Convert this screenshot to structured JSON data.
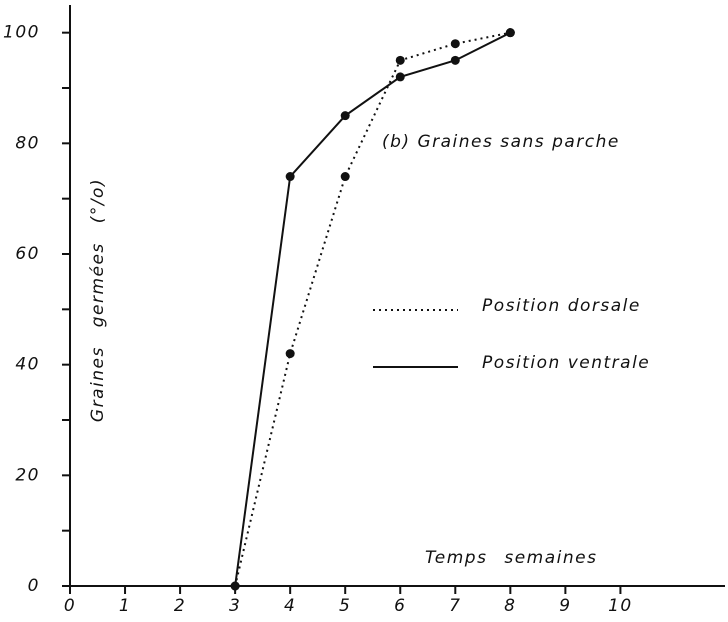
{
  "chart_data": {
    "type": "line",
    "annotation": "(b) Graines sans parche",
    "xlabel": "Temps semaines",
    "ylabel": "Graines germées (°/o)",
    "x": [
      3,
      4,
      5,
      6,
      7,
      8
    ],
    "series": [
      {
        "name": "Position dorsale",
        "color": "#111111",
        "dash": "dotted",
        "values": [
          0,
          42,
          74,
          95,
          98,
          100
        ]
      },
      {
        "name": "Position ventrale",
        "color": "#111111",
        "dash": "solid",
        "values": [
          0,
          74,
          85,
          92,
          95,
          100
        ]
      }
    ],
    "xlim": [
      0,
      11.9
    ],
    "xticks": [
      0,
      1,
      2,
      3,
      4,
      5,
      6,
      7,
      8,
      9,
      10
    ],
    "ylim": [
      0,
      105
    ],
    "yticks": [
      0,
      20,
      40,
      60,
      80,
      100
    ],
    "yminorticks": [
      10,
      30,
      50,
      70,
      90
    ],
    "grid": false
  }
}
